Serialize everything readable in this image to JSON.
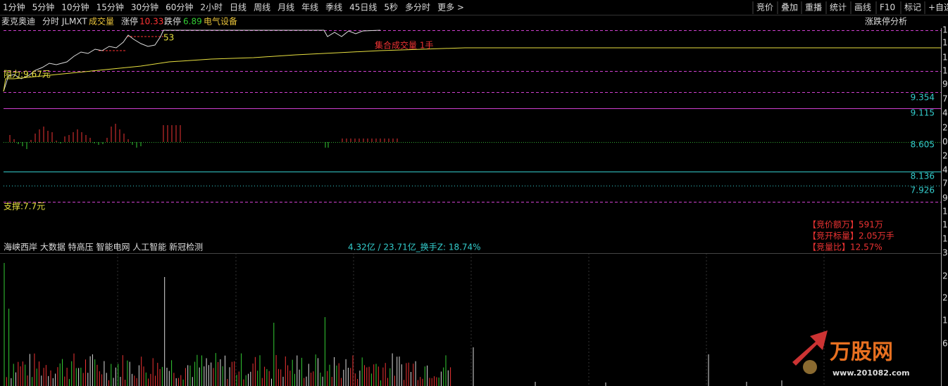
{
  "toolbar": {
    "left": [
      "1分钟",
      "5分钟",
      "10分钟",
      "15分钟",
      "30分钟",
      "60分钟",
      "2小时",
      "日线",
      "周线",
      "月线",
      "年线",
      "季线",
      "45日线",
      "5秒",
      "多分时",
      "更多 >"
    ],
    "right": [
      "竞价",
      "叠加",
      "重播",
      "统计",
      "画线",
      "F10",
      "标记",
      "+自选"
    ]
  },
  "header": {
    "name": "麦克奥迪",
    "mode": "分时 JLMXT",
    "volume": "成交量",
    "limit_up_label": "涨停",
    "limit_up": "10.33",
    "limit_down_label": "跌停",
    "limit_down": "6.89",
    "sector": "电气设备",
    "analysis": "涨跌停分析"
  },
  "chart": {
    "marker": "53",
    "auction_volume": "集合成交量 1手",
    "resistance": "阻力:9.67元",
    "support": "支撑:7.7元",
    "levels": [
      "9.354",
      "9.115",
      "8.605",
      "8.136",
      "7.926"
    ]
  },
  "side_axis": [
    "1",
    "1",
    "1",
    "1",
    "9",
    "7",
    "4",
    "2",
    "0",
    "2",
    "4",
    "7",
    "9",
    "1",
    "1",
    "1",
    "3",
    "2",
    "2",
    "1",
    "6"
  ],
  "auction": [
    "【竞价额万】591万",
    "【竞开标量】2.05万手",
    "【竞量比】12.57%"
  ],
  "concepts": "海峡西岸 大数据 特高压 智能电网 人工智能 新冠检测",
  "turnover": "4.32亿 / 23.71亿_换手Z: 18.74%",
  "watermark": {
    "logo": "万股网",
    "site": "www.201082.com"
  }
}
